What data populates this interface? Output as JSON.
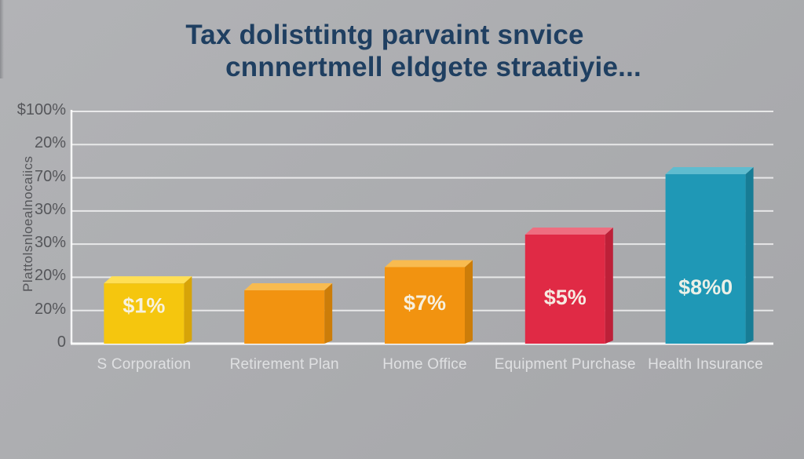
{
  "title": {
    "line1": "Tax dolisttintg parvaint snvice",
    "line2": "cnnnertmell eldgete straatiyie..."
  },
  "chart_data": {
    "type": "bar",
    "title": "Tax dolisttintg parvaint snvice cnnnertmell eldgete straatiyie...",
    "categories": [
      "S Corporation",
      "Retirement Plan",
      "Home Office",
      "Equipment Purchase",
      "Health Insurance"
    ],
    "values": [
      29,
      26,
      36,
      50,
      76
    ],
    "bar_labels": [
      "$1%",
      "",
      "$7%",
      "$5%",
      "$8%0"
    ],
    "ylabel": "Plattolsnloealnocaiics",
    "xlabel": "",
    "y_tick_labels": [
      "$100%",
      "20%",
      "70%",
      "30%",
      "30%",
      "20%",
      "20%",
      "0"
    ],
    "ylim": [
      0,
      100
    ],
    "grid": true,
    "legend": false,
    "style": "3d-bars",
    "bar_styles": [
      {
        "face": "#f5c60e",
        "top": "#ffdf55",
        "side": "#d7a408"
      },
      {
        "face": "#f29310",
        "top": "#f8bb50",
        "side": "#cc7d09"
      },
      {
        "face": "#f29310",
        "top": "#f8bb50",
        "side": "#cc7d09"
      },
      {
        "face": "#e02a45",
        "top": "#ee6e80",
        "side": "#bd2038"
      },
      {
        "face": "#1f98b6",
        "top": "#5fbccf",
        "side": "#177c95"
      }
    ],
    "value_label_color": "#f7f4ea"
  },
  "colors": {
    "background": "#abacaf",
    "title_text": "#1f3f61",
    "axis_text": "#55565a",
    "category_text": "#dfe0e2",
    "gridline": "#ffffff"
  }
}
